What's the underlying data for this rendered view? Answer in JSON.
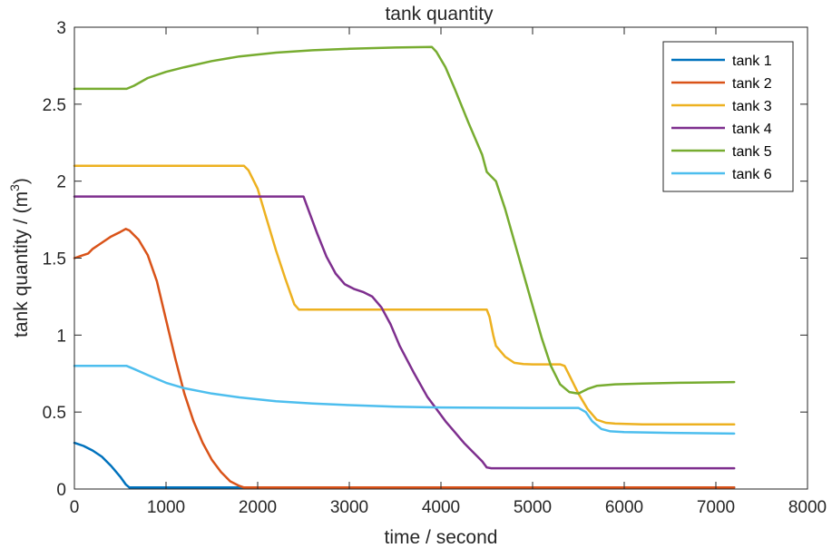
{
  "chart_data": {
    "type": "line",
    "title": "tank quantity",
    "xlabel": "time / second",
    "ylabel_text": "tank quantity / (m",
    "ylabel_sup": "3",
    "ylabel_close": ")",
    "xlim": [
      0,
      8000
    ],
    "ylim": [
      0,
      3
    ],
    "xticks": [
      0,
      1000,
      2000,
      3000,
      4000,
      5000,
      6000,
      7000,
      8000
    ],
    "yticks": [
      0,
      0.5,
      1,
      1.5,
      2,
      2.5,
      3
    ],
    "xtick_labels": [
      "0",
      "1000",
      "2000",
      "3000",
      "4000",
      "5000",
      "6000",
      "7000",
      "8000"
    ],
    "ytick_labels": [
      "0",
      "0.5",
      "1",
      "1.5",
      "2",
      "2.5",
      "3"
    ],
    "grid": false,
    "legend_position": "top-right",
    "series": [
      {
        "name": "tank 1",
        "color": "#0072BD",
        "points": [
          [
            0,
            0.3
          ],
          [
            100,
            0.28
          ],
          [
            200,
            0.25
          ],
          [
            300,
            0.21
          ],
          [
            400,
            0.15
          ],
          [
            500,
            0.08
          ],
          [
            560,
            0.03
          ],
          [
            600,
            0.01
          ],
          [
            1000,
            0.01
          ],
          [
            1800,
            0.01
          ],
          [
            7200,
            0.01
          ]
        ]
      },
      {
        "name": "tank 2",
        "color": "#D95319",
        "points": [
          [
            0,
            1.5
          ],
          [
            50,
            1.51
          ],
          [
            100,
            1.52
          ],
          [
            150,
            1.53
          ],
          [
            200,
            1.56
          ],
          [
            300,
            1.6
          ],
          [
            400,
            1.64
          ],
          [
            500,
            1.67
          ],
          [
            560,
            1.69
          ],
          [
            600,
            1.68
          ],
          [
            700,
            1.62
          ],
          [
            800,
            1.52
          ],
          [
            900,
            1.35
          ],
          [
            1000,
            1.1
          ],
          [
            1100,
            0.85
          ],
          [
            1200,
            0.62
          ],
          [
            1300,
            0.44
          ],
          [
            1400,
            0.3
          ],
          [
            1500,
            0.19
          ],
          [
            1600,
            0.11
          ],
          [
            1700,
            0.05
          ],
          [
            1800,
            0.02
          ],
          [
            1850,
            0.01
          ],
          [
            2000,
            0.01
          ],
          [
            7200,
            0.01
          ]
        ]
      },
      {
        "name": "tank 3",
        "color": "#EDB120",
        "points": [
          [
            0,
            2.1
          ],
          [
            1500,
            2.1
          ],
          [
            1850,
            2.1
          ],
          [
            1900,
            2.07
          ],
          [
            2000,
            1.95
          ],
          [
            2100,
            1.75
          ],
          [
            2200,
            1.55
          ],
          [
            2300,
            1.37
          ],
          [
            2400,
            1.2
          ],
          [
            2450,
            1.165
          ],
          [
            2500,
            1.165
          ],
          [
            3500,
            1.165
          ],
          [
            4500,
            1.165
          ],
          [
            4530,
            1.12
          ],
          [
            4570,
            1.0
          ],
          [
            4600,
            0.93
          ],
          [
            4700,
            0.86
          ],
          [
            4800,
            0.82
          ],
          [
            4900,
            0.812
          ],
          [
            5000,
            0.81
          ],
          [
            5300,
            0.81
          ],
          [
            5350,
            0.8
          ],
          [
            5400,
            0.74
          ],
          [
            5500,
            0.62
          ],
          [
            5600,
            0.52
          ],
          [
            5700,
            0.45
          ],
          [
            5800,
            0.43
          ],
          [
            5900,
            0.425
          ],
          [
            6200,
            0.42
          ],
          [
            7200,
            0.42
          ]
        ]
      },
      {
        "name": "tank 4",
        "color": "#7E2F8E",
        "points": [
          [
            0,
            1.9
          ],
          [
            1500,
            1.9
          ],
          [
            2500,
            1.9
          ],
          [
            2550,
            1.82
          ],
          [
            2650,
            1.66
          ],
          [
            2750,
            1.51
          ],
          [
            2850,
            1.4
          ],
          [
            2950,
            1.33
          ],
          [
            3050,
            1.3
          ],
          [
            3150,
            1.28
          ],
          [
            3250,
            1.25
          ],
          [
            3350,
            1.18
          ],
          [
            3450,
            1.07
          ],
          [
            3550,
            0.93
          ],
          [
            3700,
            0.76
          ],
          [
            3850,
            0.6
          ],
          [
            3950,
            0.52
          ],
          [
            4050,
            0.44
          ],
          [
            4150,
            0.37
          ],
          [
            4250,
            0.3
          ],
          [
            4350,
            0.24
          ],
          [
            4450,
            0.18
          ],
          [
            4500,
            0.14
          ],
          [
            4550,
            0.135
          ],
          [
            5000,
            0.135
          ],
          [
            7200,
            0.135
          ]
        ]
      },
      {
        "name": "tank 5",
        "color": "#77AC30",
        "points": [
          [
            0,
            2.6
          ],
          [
            570,
            2.6
          ],
          [
            650,
            2.62
          ],
          [
            800,
            2.67
          ],
          [
            1000,
            2.71
          ],
          [
            1200,
            2.74
          ],
          [
            1500,
            2.78
          ],
          [
            1800,
            2.81
          ],
          [
            2200,
            2.835
          ],
          [
            2600,
            2.85
          ],
          [
            3000,
            2.86
          ],
          [
            3500,
            2.868
          ],
          [
            3900,
            2.872
          ],
          [
            3950,
            2.84
          ],
          [
            4050,
            2.74
          ],
          [
            4150,
            2.6
          ],
          [
            4300,
            2.38
          ],
          [
            4450,
            2.17
          ],
          [
            4500,
            2.06
          ],
          [
            4600,
            2.0
          ],
          [
            4700,
            1.82
          ],
          [
            4800,
            1.61
          ],
          [
            4900,
            1.4
          ],
          [
            5000,
            1.19
          ],
          [
            5100,
            0.98
          ],
          [
            5200,
            0.8
          ],
          [
            5300,
            0.68
          ],
          [
            5400,
            0.63
          ],
          [
            5500,
            0.62
          ],
          [
            5600,
            0.65
          ],
          [
            5700,
            0.67
          ],
          [
            5900,
            0.68
          ],
          [
            6200,
            0.685
          ],
          [
            6600,
            0.69
          ],
          [
            7200,
            0.695
          ]
        ]
      },
      {
        "name": "tank 6",
        "color": "#4DBEEE",
        "points": [
          [
            0,
            0.8
          ],
          [
            570,
            0.8
          ],
          [
            650,
            0.78
          ],
          [
            800,
            0.74
          ],
          [
            1000,
            0.69
          ],
          [
            1200,
            0.655
          ],
          [
            1500,
            0.62
          ],
          [
            1800,
            0.595
          ],
          [
            2200,
            0.57
          ],
          [
            2600,
            0.555
          ],
          [
            3000,
            0.545
          ],
          [
            3500,
            0.535
          ],
          [
            4000,
            0.53
          ],
          [
            4500,
            0.528
          ],
          [
            5000,
            0.527
          ],
          [
            5500,
            0.527
          ],
          [
            5580,
            0.5
          ],
          [
            5650,
            0.44
          ],
          [
            5750,
            0.39
          ],
          [
            5850,
            0.375
          ],
          [
            6000,
            0.37
          ],
          [
            6500,
            0.365
          ],
          [
            7200,
            0.36
          ]
        ]
      }
    ]
  }
}
